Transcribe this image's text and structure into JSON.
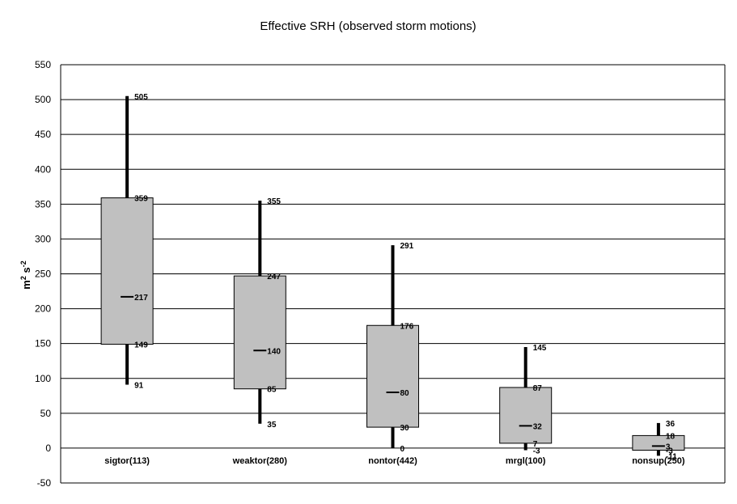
{
  "chart_data": {
    "type": "box",
    "title": "Effective SRH (observed storm motions)",
    "ylabel_base": "m",
    "ylabel_exp1": "2",
    "ylabel_mid": " s",
    "ylabel_exp2": "-2",
    "ylim": [
      -50,
      550
    ],
    "ytick_step": 50,
    "grid": true,
    "box_fill": "#c0c0c0",
    "categories": [
      "sigtor(113)",
      "weaktor(280)",
      "nontor(442)",
      "mrgl(100)",
      "nonsup(250)"
    ],
    "series": [
      {
        "category": "sigtor(113)",
        "min": 91,
        "q1": 149,
        "median": 217,
        "q3": 359,
        "max": 505,
        "labels": {
          "min": "91",
          "q1": "149",
          "median": "217",
          "q3": "359",
          "max": "505"
        }
      },
      {
        "category": "weaktor(280)",
        "min": 35,
        "q1": 85,
        "median": 140,
        "q3": 247,
        "max": 355,
        "labels": {
          "min": "35",
          "q1": "85",
          "median": "140",
          "q3": "247",
          "max": "355"
        }
      },
      {
        "category": "nontor(442)",
        "min": 0,
        "q1": 30,
        "median": 80,
        "q3": 176,
        "max": 291,
        "labels": {
          "min": "0",
          "q1": "30",
          "median": "80",
          "q3": "176",
          "max": "291"
        }
      },
      {
        "category": "mrgl(100)",
        "min": -3,
        "q1": 7,
        "median": 32,
        "q3": 87,
        "max": 145,
        "labels": {
          "min": "-3",
          "q1": "7",
          "median": "32",
          "q3": "87",
          "max": "145"
        }
      },
      {
        "category": "nonsup(250)",
        "min": -11,
        "q1": -3,
        "median": 3,
        "q3": 18,
        "max": 36,
        "labels": {
          "min": "-11",
          "q1": "-3",
          "median": "3",
          "q3": "18",
          "max": "36"
        }
      }
    ]
  }
}
